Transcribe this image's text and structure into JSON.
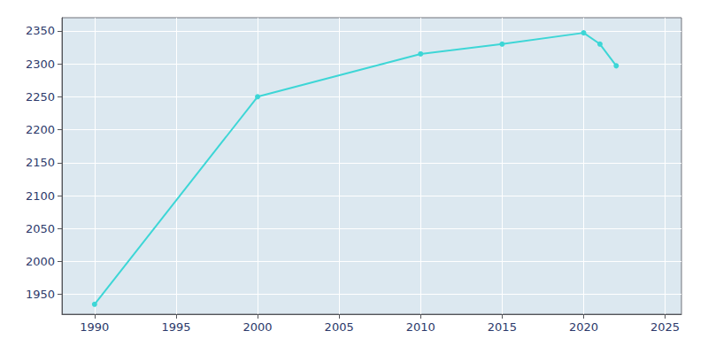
{
  "chart_data": {
    "type": "line",
    "x": [
      1990,
      2000,
      2010,
      2015,
      2020,
      2021,
      2022
    ],
    "values": [
      1935,
      2250,
      2315,
      2330,
      2347,
      2330,
      2297
    ],
    "color": "#3dd6d6",
    "marker": "circle",
    "xlim": [
      1988,
      2026
    ],
    "xticks": [
      1990,
      1995,
      2000,
      2005,
      2010,
      2015,
      2020,
      2025
    ],
    "ylim": [
      1920,
      2370
    ],
    "yticks": [
      1950,
      2000,
      2050,
      2100,
      2150,
      2200,
      2250,
      2300,
      2350
    ],
    "grid": true
  }
}
